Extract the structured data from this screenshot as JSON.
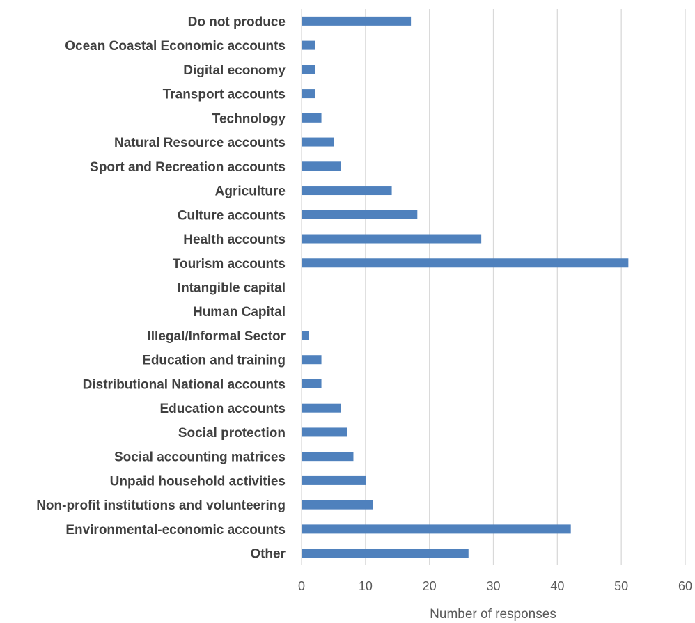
{
  "chart_data": {
    "type": "bar",
    "orientation": "horizontal",
    "categories": [
      "Do not produce",
      "Ocean Coastal Economic accounts",
      "Digital economy",
      "Transport accounts",
      "Technology",
      "Natural Resource accounts",
      "Sport and Recreation accounts",
      "Agriculture",
      "Culture accounts",
      "Health accounts",
      "Tourism accounts",
      "Intangible capital",
      "Human Capital",
      "Illegal/Informal Sector",
      "Education and training",
      "Distributional National accounts",
      "Education accounts",
      "Social protection",
      "Social accounting matrices",
      "Unpaid household activities",
      "Non-profit institutions and volunteering",
      "Environmental-economic accounts",
      "Other"
    ],
    "values": [
      17,
      2,
      2,
      2,
      3,
      5,
      6,
      14,
      18,
      28,
      51,
      0,
      0,
      1,
      3,
      3,
      6,
      7,
      8,
      10,
      11,
      42,
      26
    ],
    "xlabel": "Number of responses",
    "xlim": [
      0,
      60
    ],
    "xticks": [
      "0",
      "10",
      "20",
      "30",
      "40",
      "50",
      "60"
    ],
    "grid": true,
    "bar_color": "#4f81bd",
    "legend": "none"
  }
}
